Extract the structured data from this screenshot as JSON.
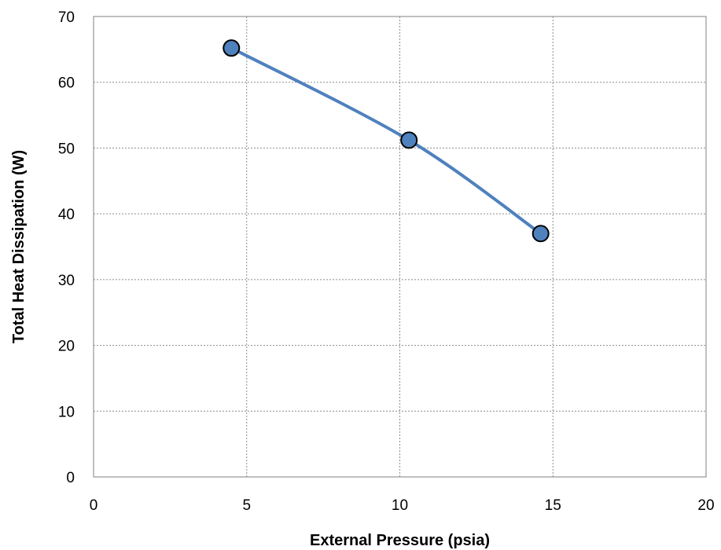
{
  "chart_data": {
    "type": "scatter",
    "title": "",
    "xlabel": "External Pressure (psia)",
    "ylabel": "Total Heat Dissipation (W)",
    "xlim": [
      0,
      20
    ],
    "ylim": [
      0,
      70
    ],
    "xticks": [
      0,
      5,
      10,
      15,
      20
    ],
    "yticks": [
      0,
      10,
      20,
      30,
      40,
      50,
      60,
      70
    ],
    "grid": true,
    "legend": "none",
    "smooth_line": true,
    "series": [
      {
        "x": [
          4.5,
          10.3,
          14.6
        ],
        "y": [
          65.2,
          51.2,
          37.0
        ],
        "line_color": "#4F81BD",
        "marker_fill": "#4F81BD",
        "marker_edge": "#000000"
      }
    ]
  }
}
